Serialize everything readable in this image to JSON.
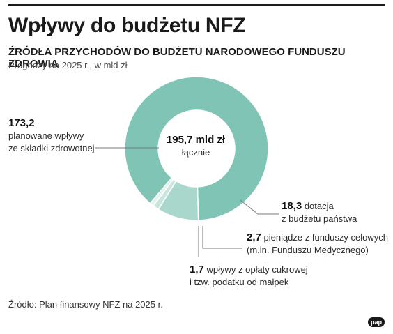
{
  "title": "Wpływy do budżetu NFZ",
  "subtitle": "ŹRÓDŁA PRZYCHODÓW DO BUDŻETU NARODOWEGO FUNDUSZU ZDROWIA",
  "note": "Prognozy na 2025 r., w mld zł",
  "center": {
    "total": "195,7 mld zł",
    "label": "łącznie"
  },
  "labels": [
    {
      "value": "173,2",
      "text1": "planowane wpływy",
      "text2": "ze składki zdrowotnej"
    },
    {
      "value": "18,3",
      "text1": "dotacja",
      "text2": "z budżetu państwa"
    },
    {
      "value": "2,7",
      "text1": "pieniądze z funduszy celowych",
      "text2": "(m.in. Funduszu Medycznego)"
    },
    {
      "value": "1,7",
      "text1": "wpływy z opłaty cukrowej",
      "text2": "i tzw. podatku od małpek"
    }
  ],
  "source": "Źródło: Plan finansowy NFZ na 2025 r.",
  "logo": "pap",
  "chart_data": {
    "type": "pie",
    "donut": true,
    "total": 195.7,
    "unit": "mld zł",
    "slices": [
      {
        "label": "planowane wpływy ze składki zdrowotnej",
        "value": 173.2,
        "color": "#7fc4b4"
      },
      {
        "label": "dotacja z budżetu państwa",
        "value": 18.3,
        "color": "#a9d7cc"
      },
      {
        "label": "pieniądze z funduszy celowych (m.in. Funduszu Medycznego)",
        "value": 2.7,
        "color": "#c8e6de"
      },
      {
        "label": "wpływy z opłaty cukrowej i tzw. podatku od małpek",
        "value": 1.7,
        "color": "#e2f2ee"
      }
    ]
  }
}
